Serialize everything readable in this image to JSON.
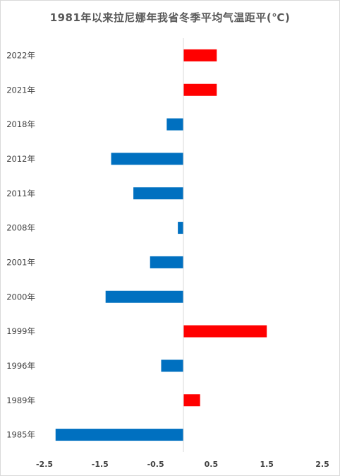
{
  "chart_data": {
    "type": "bar",
    "orientation": "horizontal",
    "title": "1981年以来拉尼娜年我省冬季平均气温距平(℃)",
    "categories": [
      "2022年",
      "2021年",
      "2018年",
      "2012年",
      "2011年",
      "2008年",
      "2001年",
      "2000年",
      "1999年",
      "1996年",
      "1989年",
      "1985年"
    ],
    "values": [
      0.6,
      0.6,
      -0.3,
      -1.3,
      -0.9,
      -0.1,
      -0.6,
      -1.4,
      1.5,
      -0.4,
      0.3,
      -2.3
    ],
    "xlim": [
      -2.5,
      2.5
    ],
    "x_ticks": [
      "-2.5",
      "-1.5",
      "-0.5",
      "0.5",
      "1.5",
      "2.5"
    ],
    "x_tick_values": [
      -2.5,
      -1.5,
      -0.5,
      0.5,
      1.5,
      2.5
    ],
    "grid": false,
    "colors": {
      "positive": "#ff0000",
      "negative": "#0070c0",
      "axis": "#d9d9d9"
    }
  }
}
